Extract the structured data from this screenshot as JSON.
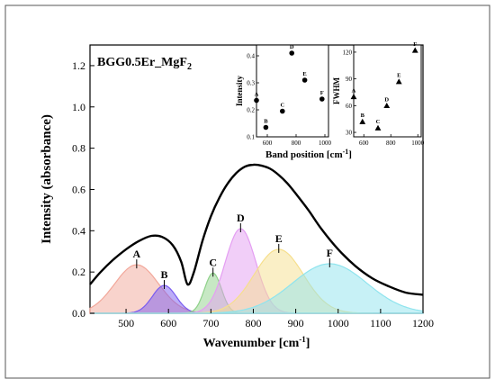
{
  "chart_data": [
    {
      "type": "area",
      "title_main": "BGG0.5Er_MgF",
      "title_sub": "2",
      "xlabel_main": "Wavenumber [cm",
      "xlabel_sup": "-1",
      "xlabel_end": "]",
      "ylabel": "Intensity (absorbance)",
      "xlim": [
        415,
        1200
      ],
      "ylim": [
        0,
        1.3
      ],
      "xticks": [
        500,
        600,
        700,
        800,
        900,
        1000,
        1100,
        1200
      ],
      "yticks": [
        0.0,
        0.2,
        0.4,
        0.6,
        0.8,
        1.0,
        1.2
      ],
      "envelope": {
        "x": [
          415,
          440,
          470,
          500,
          530,
          560,
          585,
          610,
          630,
          645,
          660,
          680,
          700,
          720,
          740,
          760,
          780,
          800,
          820,
          840,
          860,
          880,
          900,
          930,
          960,
          1000,
          1040,
          1080,
          1120,
          1160,
          1200
        ],
        "y": [
          0.14,
          0.2,
          0.26,
          0.31,
          0.35,
          0.375,
          0.37,
          0.33,
          0.25,
          0.14,
          0.2,
          0.35,
          0.47,
          0.56,
          0.63,
          0.68,
          0.71,
          0.72,
          0.715,
          0.7,
          0.67,
          0.63,
          0.58,
          0.5,
          0.41,
          0.31,
          0.23,
          0.17,
          0.13,
          0.1,
          0.09
        ]
      },
      "bands": [
        {
          "label": "A",
          "center": 525,
          "height": 0.235,
          "sigma": 52,
          "color": "#f2a79a"
        },
        {
          "label": "B",
          "center": 590,
          "height": 0.135,
          "sigma": 28,
          "color": "#7a5cf0"
        },
        {
          "label": "C",
          "center": 705,
          "height": 0.195,
          "sigma": 20,
          "color": "#8fd18a"
        },
        {
          "label": "D",
          "center": 770,
          "height": 0.41,
          "sigma": 36,
          "color": "#e49ef2"
        },
        {
          "label": "E",
          "center": 860,
          "height": 0.31,
          "sigma": 58,
          "color": "#f6df8d"
        },
        {
          "label": "F",
          "center": 980,
          "height": 0.24,
          "sigma": 88,
          "color": "#8fe4ee"
        }
      ]
    },
    {
      "type": "scatter",
      "xlabel_main": "Band position [cm",
      "xlabel_sup": "-1",
      "xlabel_end": "]",
      "xticks": [
        600,
        800,
        1000
      ],
      "xlim": [
        525,
        1025
      ],
      "panels": [
        {
          "ylabel": "Intensity",
          "marker": "circle",
          "ylim": [
            0.1,
            0.44
          ],
          "yticks": [
            0.1,
            0.2,
            0.3,
            0.4
          ],
          "points": [
            {
              "label": "A",
              "x": 525,
              "y": 0.235
            },
            {
              "label": "B",
              "x": 590,
              "y": 0.135
            },
            {
              "label": "C",
              "x": 705,
              "y": 0.195
            },
            {
              "label": "D",
              "x": 770,
              "y": 0.41
            },
            {
              "label": "E",
              "x": 860,
              "y": 0.31
            },
            {
              "label": "F",
              "x": 980,
              "y": 0.24
            }
          ]
        },
        {
          "ylabel": "FWHM",
          "marker": "triangle",
          "ylim": [
            25,
            128
          ],
          "yticks": [
            30,
            60,
            90,
            120
          ],
          "points": [
            {
              "label": "A",
              "x": 525,
              "y": 70
            },
            {
              "label": "B",
              "x": 590,
              "y": 42
            },
            {
              "label": "C",
              "x": 705,
              "y": 35
            },
            {
              "label": "D",
              "x": 770,
              "y": 60
            },
            {
              "label": "E",
              "x": 860,
              "y": 87
            },
            {
              "label": "F",
              "x": 980,
              "y": 122
            }
          ]
        }
      ]
    }
  ]
}
